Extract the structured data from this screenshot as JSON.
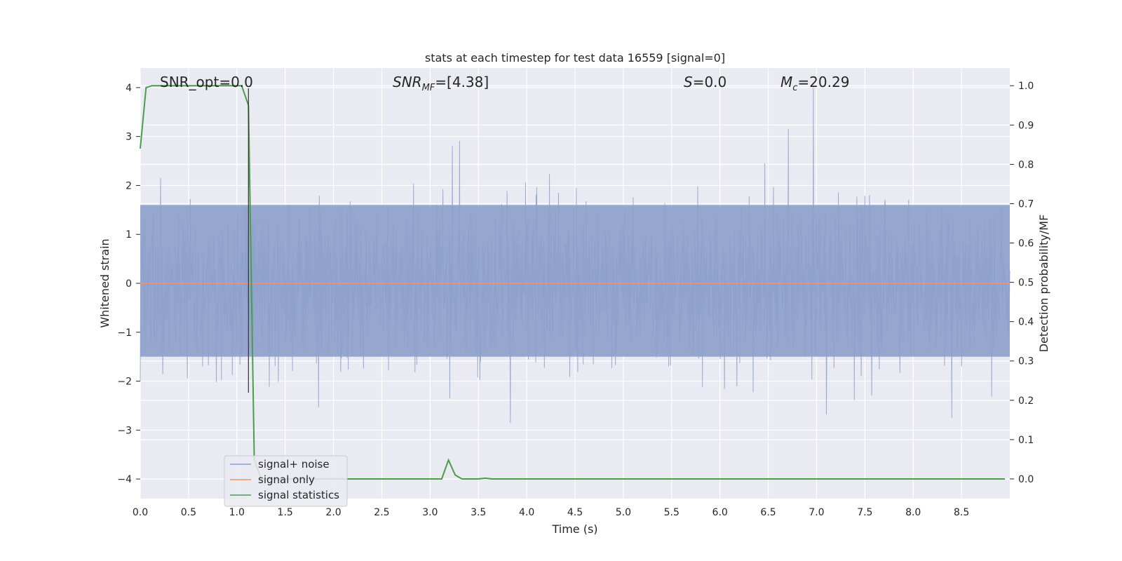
{
  "chart_data": {
    "type": "line",
    "title": "stats at each timestep for test data 16559 [signal=0]",
    "xlabel": "Time (s)",
    "ylabel_left": "Whitened strain",
    "ylabel_right": "Detection probability/MF",
    "xlim": [
      0.0,
      9.0
    ],
    "ylim_left": [
      -4.4,
      4.4
    ],
    "ylim_right": [
      -0.05,
      1.045
    ],
    "x_ticks": [
      "0.0",
      "0.5",
      "1.0",
      "1.5",
      "2.0",
      "2.5",
      "3.0",
      "3.5",
      "4.0",
      "4.5",
      "5.0",
      "5.5",
      "6.0",
      "6.5",
      "7.0",
      "7.5",
      "8.0",
      "8.5"
    ],
    "y_ticks_left": [
      "4",
      "3",
      "2",
      "1",
      "0",
      "−1",
      "−2",
      "−3",
      "−4"
    ],
    "y_ticks_right": [
      "1.0",
      "0.9",
      "0.8",
      "0.7",
      "0.6",
      "0.5",
      "0.4",
      "0.3",
      "0.2",
      "0.1",
      "0.0"
    ],
    "grid": true,
    "legend_position": "lower-left",
    "annotations": {
      "snr_opt": "SNR_opt=0.0",
      "snr_mf": "SNR_MF=[4.38]",
      "s": "S=0.0",
      "mc": "M_c=20.29"
    },
    "vertical_marker_x": 1.12,
    "series": [
      {
        "name": "signal+ noise",
        "color": "#8da0cb",
        "description_kind": "noise",
        "x_range": [
          0.0,
          9.0
        ],
        "band_core": [
          -1.5,
          1.6
        ],
        "typical_peak_range": [
          -3.5,
          4.0
        ]
      },
      {
        "name": "signal only",
        "color": "#fc8d62",
        "x": [
          0.0,
          9.0
        ],
        "y": [
          0.0,
          0.0
        ]
      },
      {
        "name": "signal statistics",
        "color": "#4a9e4a",
        "axis": "right",
        "x": [
          0.0,
          0.06,
          0.12,
          0.3,
          0.6,
          0.9,
          1.05,
          1.12,
          1.18,
          1.25,
          1.5,
          2.0,
          2.5,
          3.0,
          3.12,
          3.19,
          3.26,
          3.33,
          3.5,
          3.57,
          3.64,
          4.0,
          5.0,
          6.0,
          7.0,
          8.0,
          8.95
        ],
        "y": [
          0.84,
          0.995,
          1.0,
          1.0,
          1.0,
          1.0,
          1.0,
          0.95,
          0.05,
          0.0,
          0.0,
          0.0,
          0.0,
          0.0,
          0.0,
          0.048,
          0.01,
          0.0,
          0.0,
          0.002,
          0.0,
          0.0,
          0.0,
          0.0,
          0.0,
          0.0,
          0.0
        ]
      }
    ]
  }
}
